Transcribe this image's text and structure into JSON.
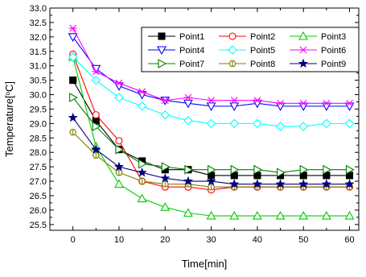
{
  "chart_data": {
    "type": "line",
    "title": "",
    "xlabel": "Time[min]",
    "ylabel": "Temperature[°C]",
    "xlim": [
      -5,
      62
    ],
    "ylim": [
      25.3,
      33.0
    ],
    "x_ticks": [
      0,
      10,
      20,
      30,
      40,
      50,
      60
    ],
    "y_ticks": [
      25.5,
      26.0,
      26.5,
      27.0,
      27.5,
      28.0,
      28.5,
      29.0,
      29.5,
      30.0,
      30.5,
      31.0,
      31.5,
      32.0,
      32.5,
      33.0
    ],
    "legend_position": "top-right",
    "grid": false,
    "x": [
      0,
      5,
      10,
      15,
      20,
      25,
      30,
      35,
      40,
      45,
      50,
      55,
      60
    ],
    "series": [
      {
        "name": "Point1",
        "color": "#000000",
        "marker": "square-filled",
        "values": [
          30.5,
          29.1,
          28.1,
          27.7,
          27.4,
          27.4,
          27.2,
          27.2,
          27.2,
          27.2,
          27.2,
          27.2,
          27.2
        ]
      },
      {
        "name": "Point2",
        "color": "#ff0000",
        "marker": "circle-open",
        "values": [
          31.4,
          29.3,
          28.4,
          27.0,
          26.8,
          26.8,
          26.7,
          26.8,
          26.8,
          26.8,
          26.8,
          26.8,
          26.8
        ]
      },
      {
        "name": "Point3",
        "color": "#00cc00",
        "marker": "triangle-up-open",
        "values": [
          31.3,
          28.2,
          26.9,
          26.4,
          26.1,
          25.9,
          25.8,
          25.8,
          25.8,
          25.8,
          25.8,
          25.8,
          25.8
        ]
      },
      {
        "name": "Point4",
        "color": "#0000ff",
        "marker": "triangle-down-open",
        "values": [
          32.0,
          30.9,
          30.3,
          30.0,
          29.8,
          29.7,
          29.6,
          29.6,
          29.7,
          29.6,
          29.6,
          29.6,
          29.6
        ]
      },
      {
        "name": "Point5",
        "color": "#00ffff",
        "marker": "diamond-open",
        "values": [
          31.3,
          30.5,
          29.9,
          29.6,
          29.3,
          29.1,
          29.0,
          29.0,
          29.0,
          28.9,
          28.9,
          29.0,
          29.0
        ]
      },
      {
        "name": "Point6",
        "color": "#ff00ff",
        "marker": "x-star",
        "values": [
          32.3,
          30.8,
          30.4,
          30.1,
          29.8,
          29.9,
          29.8,
          29.8,
          29.8,
          29.7,
          29.7,
          29.7,
          29.7
        ]
      },
      {
        "name": "Point7",
        "color": "#008000",
        "marker": "triangle-right-open",
        "values": [
          29.9,
          28.9,
          28.1,
          27.6,
          27.5,
          27.4,
          27.4,
          27.4,
          27.4,
          27.3,
          27.4,
          27.4,
          27.4
        ]
      },
      {
        "name": "Point8",
        "color": "#808000",
        "marker": "hexagon-open",
        "values": [
          28.7,
          27.9,
          27.3,
          27.0,
          26.9,
          26.9,
          26.8,
          26.8,
          26.8,
          26.8,
          26.8,
          26.8,
          26.8
        ]
      },
      {
        "name": "Point9",
        "color": "#000080",
        "marker": "star",
        "values": [
          29.2,
          28.1,
          27.5,
          27.3,
          27.1,
          27.0,
          27.0,
          26.9,
          26.9,
          26.9,
          26.9,
          26.9,
          26.9
        ]
      }
    ]
  }
}
